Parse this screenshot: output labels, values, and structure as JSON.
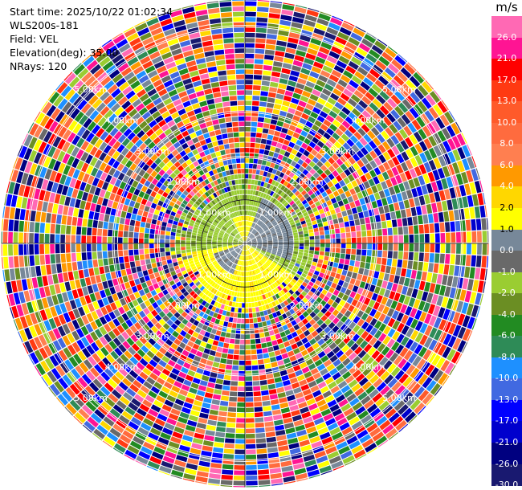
{
  "header": {
    "start_time": "Start time: 2025/10/22 01:02:34",
    "instrument": "WLS200s-181",
    "field": "Field: VEL",
    "elevation": "Elevation(deg): 35.00",
    "nrays": "NRays: 120"
  },
  "chart_data": {
    "type": "heatmap",
    "projection": "polar-ppi",
    "field": "VEL",
    "units": "m/s",
    "nrays": 120,
    "range_rings_km": [
      1.0,
      2.0,
      3.0,
      4.0,
      5.0
    ],
    "ring_labels": [
      "1.00km",
      "2.00km",
      "3.00km",
      "4.00km",
      "5.00km"
    ],
    "max_range_km": 5.6,
    "colorbar": {
      "unit": "m/s",
      "ticks": [
        26.0,
        21.0,
        17.0,
        13.0,
        10.0,
        8.0,
        6.0,
        4.0,
        2.0,
        1.0,
        0.0,
        -1.0,
        -2.0,
        -4.0,
        -6.0,
        -8.0,
        -10.0,
        -13.0,
        -17.0,
        -21.0,
        -26.0,
        -30.0
      ],
      "tick_labels": [
        "26.0",
        "21.0",
        "17.0",
        "13.0",
        "10.0",
        "8.0",
        "6.0",
        "4.0",
        "2.0",
        "1.0",
        "0.0",
        "-1.0",
        "-2.0",
        "-4.0",
        "-6.0",
        "-8.0",
        "-10.0",
        "-13.0",
        "-17.0",
        "-21.0",
        "-26.0",
        "-30.0"
      ],
      "colors": [
        "#ff69b4",
        "#ff1493",
        "#ff0000",
        "#ff3a12",
        "#ff5a2a",
        "#ff6b3e",
        "#ff7f50",
        "#ff9900",
        "#ffd700",
        "#ffff00",
        "#778899",
        "#696969",
        "#9acd32",
        "#6b8e23",
        "#228b22",
        "#2e8b57",
        "#1e90ff",
        "#4169e1",
        "#0000ff",
        "#0000cd",
        "#000080",
        "#191970"
      ]
    },
    "near_field": {
      "outer_range_km": 1.6,
      "palette": [
        "#9acd32",
        "#ffff00",
        "#778899",
        "#696969",
        "#6b8e23",
        "#ffd700"
      ]
    }
  }
}
